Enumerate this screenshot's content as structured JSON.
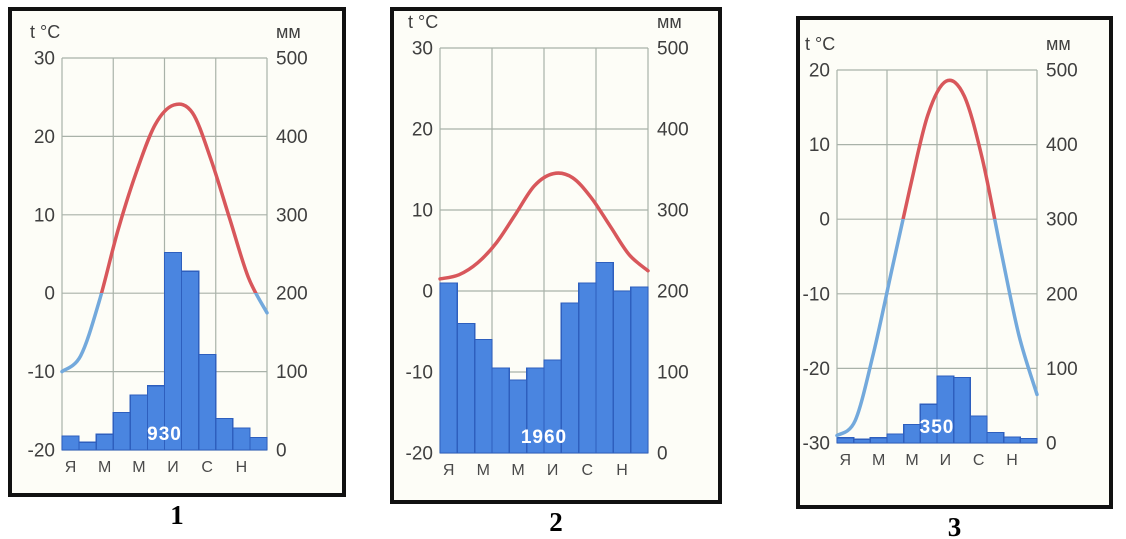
{
  "page": {
    "background": "#ffffff"
  },
  "colors": {
    "bar_fill": "#4a85e0",
    "bar_border": "#2e5fbe",
    "temp_above_zero": "#d8575b",
    "temp_below_zero": "#73a9dc",
    "grid": "#a9b2a9",
    "axis_text": "#3f3f3f",
    "month_text": "#4a4a4a",
    "annual_text": "#ffffff",
    "panel_border": "#111111",
    "panel_bg": "#fdfdf7",
    "panel_number_text": "#000000"
  },
  "chart_data": [
    {
      "type": "climograph (bar + line)",
      "panel_label": "1",
      "temp_axis_label": "t °C",
      "precip_axis_label": "мм",
      "temp_ticks": [
        30,
        20,
        10,
        0,
        -10,
        -20
      ],
      "precip_ticks": [
        500,
        400,
        300,
        200,
        100,
        0
      ],
      "temp_range": [
        -20,
        30
      ],
      "precip_range": [
        0,
        500
      ],
      "month_tick_labels": [
        "Я",
        "М",
        "М",
        "И",
        "С",
        "Н"
      ],
      "months_per_year": 12,
      "annual_precip_label": "930",
      "series": [
        {
          "name": "temperature_c",
          "type": "line",
          "values": [
            -10,
            -8,
            -1,
            8,
            15.5,
            21.5,
            24,
            23,
            17,
            9.5,
            2,
            -2.5
          ]
        },
        {
          "name": "precipitation_mm",
          "type": "bar",
          "values": [
            18,
            10,
            20,
            48,
            70,
            82,
            252,
            228,
            122,
            40,
            28,
            16
          ]
        }
      ]
    },
    {
      "type": "climograph (bar + line)",
      "panel_label": "2",
      "temp_axis_label": "t °C",
      "precip_axis_label": "мм",
      "temp_ticks": [
        30,
        20,
        10,
        0,
        -10,
        -20
      ],
      "precip_ticks": [
        500,
        400,
        300,
        200,
        100,
        0
      ],
      "temp_range": [
        -20,
        30
      ],
      "precip_range": [
        0,
        500
      ],
      "month_tick_labels": [
        "Я",
        "М",
        "М",
        "И",
        "С",
        "Н"
      ],
      "months_per_year": 12,
      "annual_precip_label": "1960",
      "series": [
        {
          "name": "temperature_c",
          "type": "line",
          "values": [
            1.5,
            2,
            3.5,
            6,
            9.5,
            13,
            14.5,
            14,
            11.5,
            8,
            4.5,
            2.5
          ]
        },
        {
          "name": "precipitation_mm",
          "type": "bar",
          "values": [
            210,
            160,
            140,
            105,
            90,
            105,
            115,
            185,
            210,
            235,
            200,
            205
          ]
        }
      ]
    },
    {
      "type": "climograph (bar + line)",
      "panel_label": "3",
      "temp_axis_label": "t °C",
      "precip_axis_label": "мм",
      "temp_ticks": [
        20,
        10,
        0,
        -10,
        -20,
        -30
      ],
      "precip_ticks": [
        500,
        400,
        300,
        200,
        100,
        0
      ],
      "temp_range": [
        -30,
        20
      ],
      "precip_range": [
        0,
        500
      ],
      "month_tick_labels": [
        "Я",
        "М",
        "М",
        "И",
        "С",
        "Н"
      ],
      "months_per_year": 12,
      "annual_precip_label": "350",
      "series": [
        {
          "name": "temperature_c",
          "type": "line",
          "values": [
            -29,
            -27,
            -18,
            -7,
            4,
            14,
            18.5,
            16.5,
            8,
            -4,
            -15.5,
            -23.5
          ]
        },
        {
          "name": "precipitation_mm",
          "type": "bar",
          "values": [
            7,
            5,
            7,
            12,
            25,
            52,
            90,
            88,
            36,
            14,
            8,
            6
          ]
        }
      ]
    }
  ]
}
